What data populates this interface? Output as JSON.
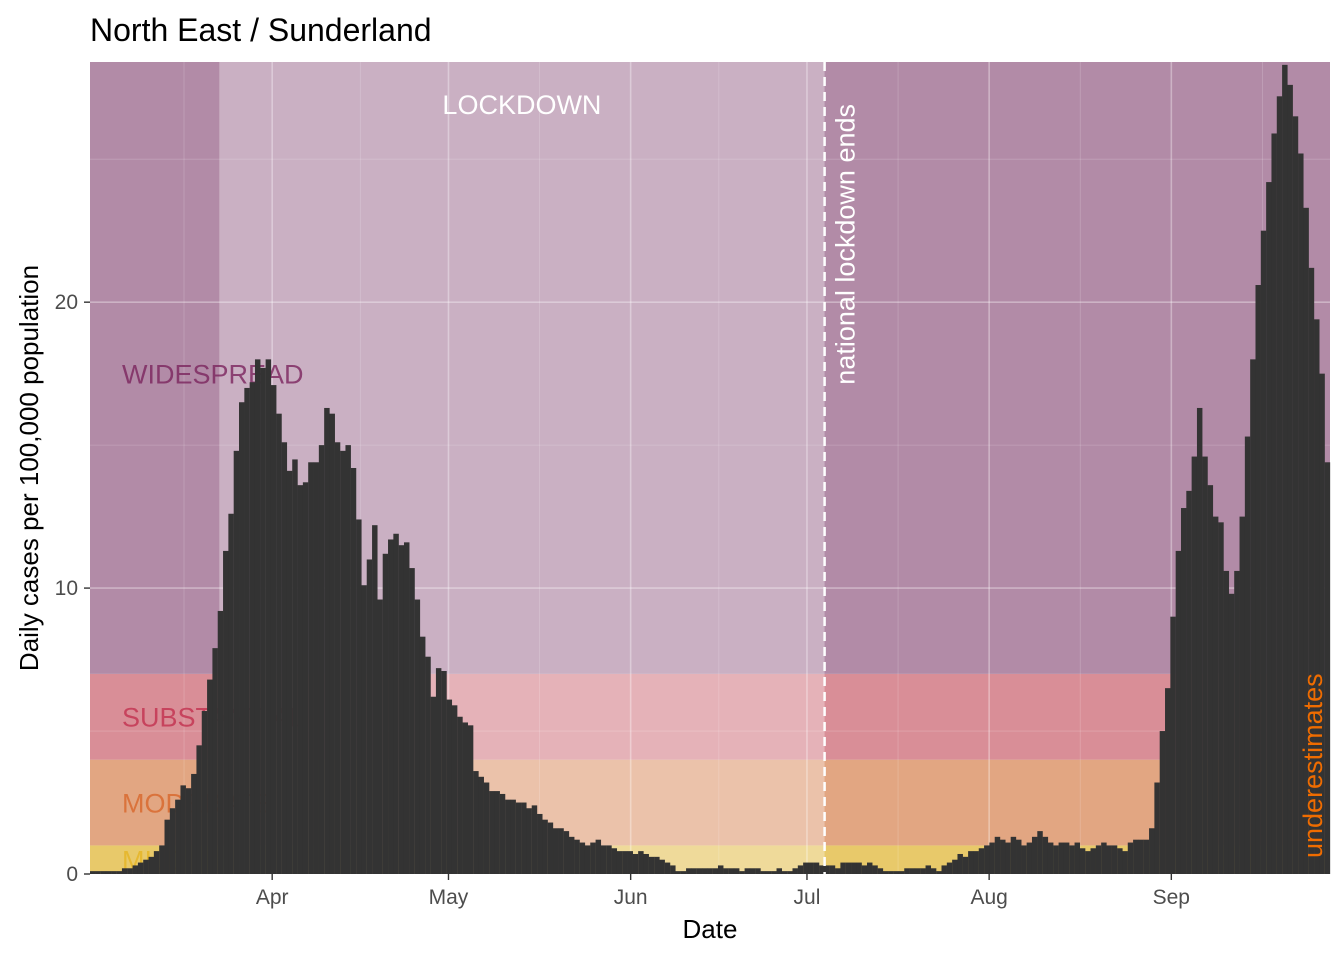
{
  "chart_data": {
    "type": "bar",
    "title": "North East / Sunderland",
    "xlabel": "Date",
    "ylabel": "Daily cases per 100,000 population",
    "x_start": "2020-03-01",
    "x_end": "2020-09-28",
    "ylim": [
      0,
      28.4
    ],
    "yticks": [
      0,
      10,
      20
    ],
    "xticks": [
      {
        "date": "2020-04-01",
        "label": "Apr"
      },
      {
        "date": "2020-05-01",
        "label": "May"
      },
      {
        "date": "2020-06-01",
        "label": "Jun"
      },
      {
        "date": "2020-07-01",
        "label": "Jul"
      },
      {
        "date": "2020-08-01",
        "label": "Aug"
      },
      {
        "date": "2020-09-01",
        "label": "Sep"
      }
    ],
    "grid": true,
    "bands": [
      {
        "label": "MILD",
        "from": 0,
        "to": 1,
        "color": "#e8c96a"
      },
      {
        "label": "MODERATE",
        "from": 1,
        "to": 4,
        "color": "#e2a682"
      },
      {
        "label": "SUBSTANTIAL",
        "from": 4,
        "to": 7,
        "color": "#d98e97"
      },
      {
        "label": "WIDESPREAD",
        "from": 7,
        "to": 28.4,
        "color": "#b28ba7"
      }
    ],
    "lockdown": {
      "label": "LOCKDOWN",
      "start": "2020-03-23",
      "end": "2020-07-04"
    },
    "event_line": {
      "date": "2020-07-04",
      "label": "national lockdown ends"
    },
    "note": "underestimates",
    "colors": {
      "bar": "#333333",
      "note": "#ef6c00",
      "vline": "#ffffff",
      "lockdown_overlay": "#ffffff"
    },
    "series": [
      {
        "values": [
          0.1,
          0.1,
          0.1,
          0.1,
          0.1,
          0.1,
          0.2,
          0.2,
          0.3,
          0.4,
          0.5,
          0.6,
          0.8,
          1,
          1.9,
          2.3,
          2.6,
          3.1,
          3,
          3.5,
          4.5,
          5.7,
          6.8,
          7.9,
          9.2,
          11.3,
          12.6,
          14.8,
          16.5,
          17,
          17.2,
          18,
          17.7,
          18,
          17.1,
          16.1,
          15.1,
          14.1,
          14.5,
          13.6,
          13.7,
          14.4,
          14.4,
          15,
          16.3,
          16.1,
          15.1,
          14.8,
          15,
          14.2,
          12.4,
          10.1,
          11,
          12.2,
          9.6,
          11.2,
          11.7,
          11.9,
          11.5,
          11.6,
          10.7,
          9.6,
          8.3,
          7.6,
          6.2,
          7.2,
          7.1,
          6.1,
          5.9,
          5.5,
          5.3,
          5.2,
          3.6,
          3.4,
          3.2,
          2.9,
          2.9,
          2.8,
          2.6,
          2.6,
          2.5,
          2.5,
          2.3,
          2.4,
          2.1,
          1.9,
          1.8,
          1.6,
          1.6,
          1.5,
          1.3,
          1.2,
          1.1,
          1,
          1.1,
          1.2,
          1,
          1,
          0.9,
          0.8,
          0.8,
          0.8,
          0.7,
          0.8,
          0.7,
          0.6,
          0.6,
          0.5,
          0.4,
          0.3,
          0.1,
          0.1,
          0.2,
          0.2,
          0.2,
          0.2,
          0.2,
          0.2,
          0.3,
          0.2,
          0.2,
          0.2,
          0.1,
          0.2,
          0.2,
          0.2,
          0.1,
          0.1,
          0.1,
          0.2,
          0.1,
          0.1,
          0.2,
          0.3,
          0.4,
          0.4,
          0.4,
          0.3,
          0.3,
          0.3,
          0.2,
          0.4,
          0.4,
          0.4,
          0.4,
          0.3,
          0.4,
          0.3,
          0.2,
          0.1,
          0.1,
          0.1,
          0.1,
          0.2,
          0.2,
          0.2,
          0.2,
          0.3,
          0.2,
          0.1,
          0.3,
          0.4,
          0.5,
          0.7,
          0.6,
          0.8,
          0.8,
          0.9,
          1,
          1.1,
          1.3,
          1.2,
          1.1,
          1.3,
          1.2,
          1,
          1.1,
          1.3,
          1.5,
          1.3,
          1.1,
          1,
          1.1,
          1.1,
          1,
          1.1,
          0.9,
          0.8,
          0.9,
          1,
          1.1,
          1,
          1,
          0.9,
          0.8,
          1.1,
          1.2,
          1.2,
          1.2,
          1.6,
          3.2,
          5,
          6.5,
          9,
          11.3,
          12.8,
          13.4,
          14.6,
          16.3,
          14.6,
          13.6,
          12.5,
          12.3,
          10.6,
          9.8,
          10.6,
          12.5,
          15.3,
          18,
          20.6,
          22.5,
          24.2,
          25.9,
          27.2,
          28.3,
          27.6,
          26.5,
          25.2,
          23.3,
          21.2,
          19.4,
          17.5,
          14.4
        ]
      }
    ]
  }
}
